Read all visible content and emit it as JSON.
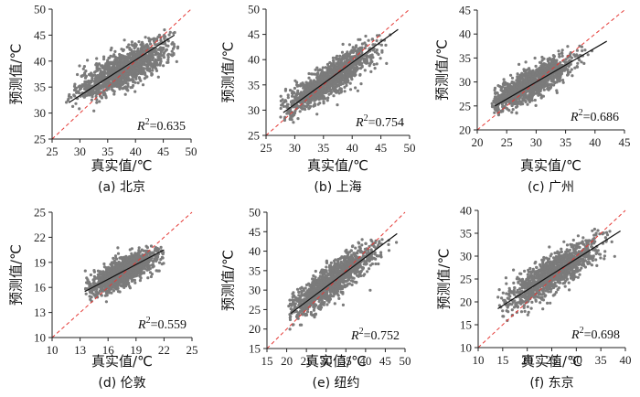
{
  "chart_data": [
    {
      "id": "a",
      "type": "scatter",
      "caption": "(a) 北京",
      "xlabel": "真实值/℃",
      "ylabel": "预测值/℃",
      "xlim": [
        25,
        50
      ],
      "ylim": [
        25,
        50
      ],
      "xticks": [
        25,
        30,
        35,
        40,
        45,
        50
      ],
      "yticks": [
        25,
        30,
        35,
        40,
        45,
        50
      ],
      "r2_prefix": "R",
      "r2_sup": "2",
      "r2_value": "=0.635",
      "fit_line": [
        [
          28,
          32
        ],
        [
          47,
          45
        ]
      ],
      "diagonal": true,
      "cluster": {
        "cx": 38,
        "cy": 38.5,
        "sx": 4.2,
        "sy": 2.8,
        "rho": 0.78
      },
      "x_range": [
        27.5,
        48
      ],
      "y_range": [
        26,
        48
      ]
    },
    {
      "id": "b",
      "type": "scatter",
      "caption": "(b) 上海",
      "xlabel": "真实值/℃",
      "ylabel": "预测值/℃",
      "xlim": [
        25,
        50
      ],
      "ylim": [
        25,
        50
      ],
      "xticks": [
        25,
        30,
        35,
        40,
        45,
        50
      ],
      "yticks": [
        25,
        30,
        35,
        40,
        45,
        50
      ],
      "r2_prefix": "R",
      "r2_sup": "2",
      "r2_value": "=0.754",
      "fit_line": [
        [
          28,
          29.5
        ],
        [
          48,
          46
        ]
      ],
      "diagonal": true,
      "cluster": {
        "cx": 36,
        "cy": 36,
        "sx": 4.0,
        "sy": 3.3,
        "rho": 0.87
      },
      "x_range": [
        27.5,
        47
      ],
      "y_range": [
        27,
        45
      ]
    },
    {
      "id": "c",
      "type": "scatter",
      "caption": "(c) 广州",
      "xlabel": "真实值/℃",
      "ylabel": "预测值/℃",
      "xlim": [
        20,
        45
      ],
      "ylim": [
        20,
        45
      ],
      "xticks": [
        20,
        25,
        30,
        35,
        40,
        45
      ],
      "yticks": [
        20,
        25,
        30,
        35,
        40,
        45
      ],
      "r2_prefix": "R",
      "r2_sup": "2",
      "r2_value": "=0.686",
      "fit_line": [
        [
          23,
          25
        ],
        [
          42,
          38.5
        ]
      ],
      "diagonal": true,
      "cluster": {
        "cx": 29,
        "cy": 29.5,
        "sx": 3.6,
        "sy": 2.8,
        "rho": 0.83
      },
      "x_range": [
        22.5,
        42
      ],
      "y_range": [
        23,
        37.5
      ]
    },
    {
      "id": "d",
      "type": "scatter",
      "caption": "(d) 伦敦",
      "xlabel": "真实值/℃",
      "ylabel": "预测值/℃",
      "xlim": [
        10,
        25
      ],
      "ylim": [
        10,
        25
      ],
      "xticks": [
        10,
        13,
        16,
        19,
        22,
        25
      ],
      "yticks": [
        10,
        13,
        16,
        19,
        22,
        25
      ],
      "r2_prefix": "R",
      "r2_sup": "2",
      "r2_value": "=0.559",
      "fit_line": [
        [
          13.5,
          15.5
        ],
        [
          22,
          20.5
        ]
      ],
      "diagonal": true,
      "cluster": {
        "cx": 17.5,
        "cy": 17.8,
        "sx": 1.9,
        "sy": 1.3,
        "rho": 0.75
      },
      "x_range": [
        13.5,
        22
      ],
      "y_range": [
        14,
        21
      ]
    },
    {
      "id": "e",
      "type": "scatter",
      "caption": "(e) 纽约",
      "xlabel": "真实值/℃",
      "ylabel": "预测值/℃",
      "xlim": [
        15,
        50
      ],
      "ylim": [
        15,
        50
      ],
      "xticks": [
        15,
        20,
        25,
        30,
        35,
        40,
        45,
        50
      ],
      "yticks": [
        15,
        20,
        25,
        30,
        35,
        40,
        45,
        50
      ],
      "r2_prefix": "R",
      "r2_sup": "2",
      "r2_value": "=0.752",
      "fit_line": [
        [
          21,
          24
        ],
        [
          48,
          44.5
        ]
      ],
      "diagonal": true,
      "cluster": {
        "cx": 31,
        "cy": 32,
        "sx": 5.5,
        "sy": 4.6,
        "rho": 0.87
      },
      "x_range": [
        20.5,
        48
      ],
      "y_range": [
        17,
        43
      ]
    },
    {
      "id": "f",
      "type": "scatter",
      "caption": "(f) 东京",
      "xlabel": "真实值/℃",
      "ylabel": "预测值/℃",
      "xlim": [
        10,
        40
      ],
      "ylim": [
        10,
        40
      ],
      "xticks": [
        10,
        15,
        20,
        25,
        30,
        35,
        40
      ],
      "yticks": [
        10,
        15,
        20,
        25,
        30,
        35,
        40
      ],
      "r2_prefix": "R",
      "r2_sup": "2",
      "r2_value": "=0.698",
      "fit_line": [
        [
          14,
          18.5
        ],
        [
          39,
          35.5
        ]
      ],
      "diagonal": true,
      "cluster": {
        "cx": 25,
        "cy": 26,
        "sx": 4.6,
        "sy": 3.6,
        "rho": 0.84
      },
      "x_range": [
        14,
        38
      ],
      "y_range": [
        15,
        36
      ]
    }
  ],
  "colors": {
    "points": "#7b7b7b",
    "fit": "#111111",
    "diagonal": "#e53935",
    "axis": "#222222"
  }
}
